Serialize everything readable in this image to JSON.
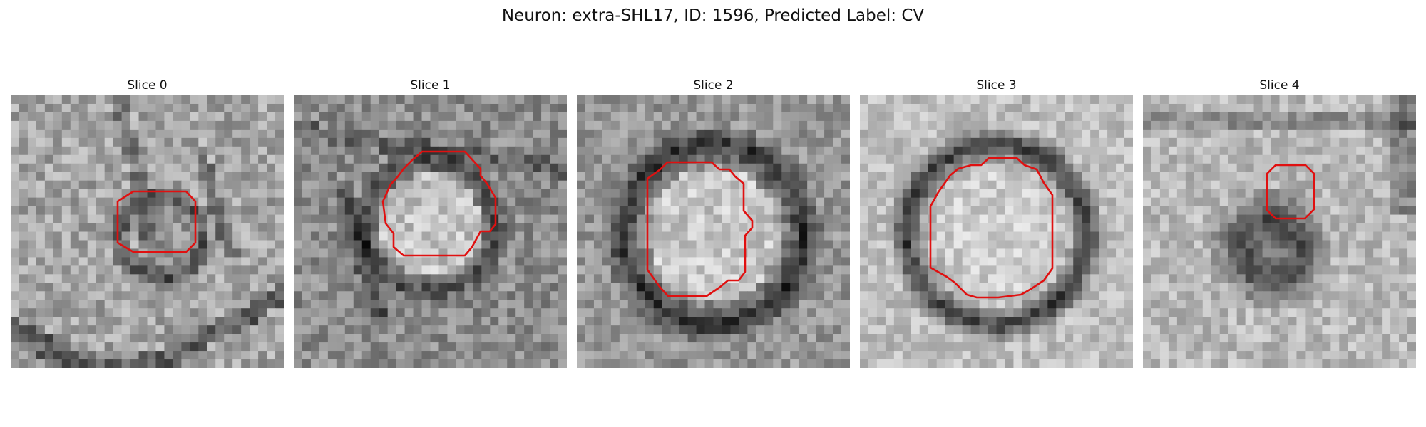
{
  "figure": {
    "title": "Neuron: extra-SHL17, ID: 1596, Predicted Label: CV"
  },
  "panels": [
    {
      "title": "Slice 0",
      "contour_color": "#e01010"
    },
    {
      "title": "Slice 1",
      "contour_color": "#e01010"
    },
    {
      "title": "Slice 2",
      "contour_color": "#e01010"
    },
    {
      "title": "Slice 3",
      "contour_color": "#e01010"
    },
    {
      "title": "Slice 4",
      "contour_color": "#e01010"
    }
  ]
}
